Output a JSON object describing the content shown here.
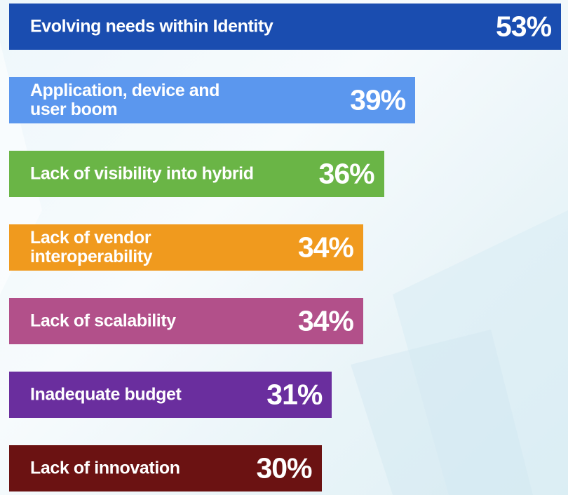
{
  "chart_data": {
    "type": "bar",
    "orientation": "horizontal",
    "categories": [
      "Evolving needs within Identity",
      "Application, device and\nuser boom",
      "Lack of visibility into hybrid",
      "Lack of vendor\ninteroperability",
      "Lack of scalability",
      "Inadequate budget",
      "Lack of innovation"
    ],
    "values": [
      53,
      39,
      36,
      34,
      34,
      31,
      30
    ],
    "value_labels": [
      "53%",
      "39%",
      "36%",
      "34%",
      "34%",
      "31%",
      "30%"
    ],
    "colors": [
      "#1A4DB0",
      "#5B97EE",
      "#6AB546",
      "#F09A1E",
      "#B2508A",
      "#6A2E9E",
      "#6B1212"
    ],
    "unit": "%",
    "grid": false
  }
}
